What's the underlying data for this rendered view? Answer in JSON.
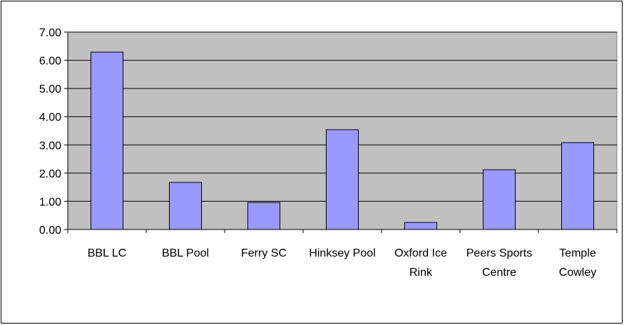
{
  "chart_data": {
    "type": "bar",
    "categories": [
      "BBL LC",
      "BBL Pool",
      "Ferry SC",
      "Hinksey Pool",
      "Oxford Ice Rink",
      "Peers Sports Centre",
      "Temple Cowley"
    ],
    "values": [
      6.29,
      1.67,
      0.96,
      3.54,
      0.25,
      2.12,
      3.08
    ],
    "color": "#9999ff",
    "ylim": [
      0,
      7
    ],
    "yticks": [
      {
        "value": 0,
        "label": "0.00"
      },
      {
        "value": 1,
        "label": "1.00"
      },
      {
        "value": 2,
        "label": "2.00"
      },
      {
        "value": 3,
        "label": "3.00"
      },
      {
        "value": 4,
        "label": "4.00"
      },
      {
        "value": 5,
        "label": "5.00"
      },
      {
        "value": 6,
        "label": "6.00"
      },
      {
        "value": 7,
        "label": "7.00"
      }
    ],
    "grid": true
  }
}
